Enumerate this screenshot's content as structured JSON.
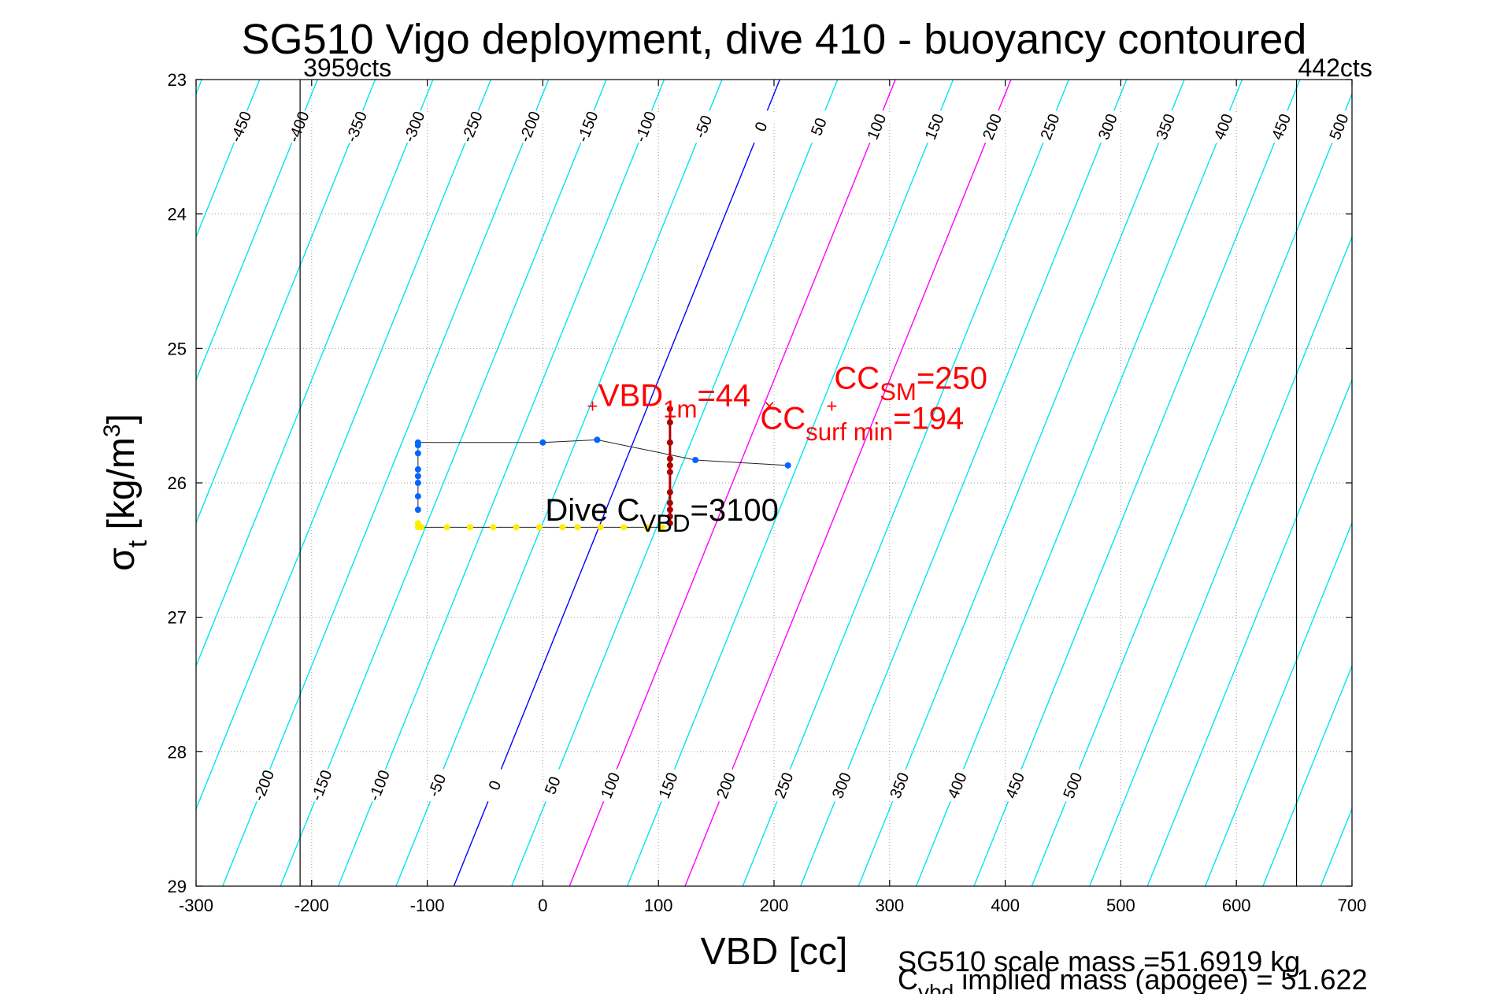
{
  "chart_data": {
    "type": "line",
    "title": "SG510 Vigo deployment, dive 410 - buoyancy contoured",
    "xlabel": "VBD [cc]",
    "ylabel": {
      "sym": "σ",
      "sub": "t",
      "unit": " [kg/m",
      "sup": "3",
      "close": "]"
    },
    "xlim": [
      -300,
      700
    ],
    "ylim": [
      23,
      29
    ],
    "y_reversed": true,
    "grid": true,
    "x_ticks": [
      -300,
      -200,
      -100,
      0,
      100,
      200,
      300,
      400,
      500,
      600,
      700
    ],
    "y_ticks": [
      23,
      24,
      25,
      26,
      27,
      28,
      29
    ],
    "vbd_limits": [
      {
        "x": -210,
        "label": "3959cts"
      },
      {
        "x": 652,
        "label": "442cts"
      }
    ],
    "buoyancy_contours": {
      "top_sigma": 23,
      "top_anchor_x": 205,
      "bottom_sigma": 29,
      "bottom_anchor_x": -77,
      "step": 50,
      "min": -700,
      "max": 800,
      "top_labels": [
        -450,
        -400,
        -350,
        -300,
        -250,
        -200,
        -150,
        -100,
        -50,
        0,
        50,
        100,
        150,
        200,
        250,
        300,
        350,
        400,
        450,
        500
      ],
      "bottom_labels": [
        -200,
        -150,
        -100,
        -50,
        0,
        50,
        100,
        150,
        200,
        250,
        300,
        350,
        400,
        450,
        500
      ],
      "highlight": [
        {
          "value": 0,
          "color": "#0000ff"
        },
        {
          "value": 100,
          "color": "#ff00ff"
        },
        {
          "value": 200,
          "color": "#ff00ff"
        }
      ],
      "color": "#00e5ee"
    },
    "series": [
      {
        "id": "dive-upper-track",
        "color": "#0066ff",
        "x": [
          -108,
          -108,
          -108,
          -108,
          -108,
          -108,
          -108,
          -108,
          0,
          47,
          132,
          212
        ],
        "y": [
          25.72,
          25.78,
          25.9,
          25.95,
          26.0,
          26.1,
          26.2,
          25.7,
          25.7,
          25.68,
          25.83,
          25.87
        ]
      },
      {
        "id": "dive-lower-track",
        "color": "#ffee00",
        "x": [
          -108,
          -108,
          -105,
          -83,
          -63,
          -43,
          -23,
          -3,
          17,
          30,
          50,
          70,
          90,
          103
        ],
        "y": [
          26.33,
          26.3,
          26.33,
          26.33,
          26.33,
          26.33,
          26.33,
          26.33,
          26.33,
          26.33,
          26.33,
          26.33,
          26.33,
          26.33
        ]
      },
      {
        "id": "climb-column",
        "color": "#b00000",
        "x": [
          110,
          110,
          110,
          110,
          110,
          110,
          110,
          110,
          110,
          110,
          110
        ],
        "y": [
          25.45,
          25.55,
          25.7,
          25.82,
          25.87,
          25.92,
          26.07,
          26.15,
          26.2,
          26.25,
          26.3
        ]
      }
    ],
    "markers": [
      {
        "x": 43,
        "y": 25.43,
        "symbol": "+",
        "color": "#ff0000"
      },
      {
        "x": 196,
        "y": 25.43,
        "symbol": "×",
        "color": "#ff0000"
      },
      {
        "x": 250,
        "y": 25.43,
        "symbol": "+",
        "color": "#ff0000"
      }
    ],
    "annotations": [
      {
        "x": 48,
        "y": 25.43,
        "main": "VBD",
        "sub": "1m",
        "tail": "=44",
        "color": "#ff0000"
      },
      {
        "x": 188,
        "y": 25.6,
        "main": "CC",
        "sub": "surf min",
        "tail": "=194",
        "color": "#ff0000"
      },
      {
        "x": 252,
        "y": 25.3,
        "main": "CC",
        "sub": "SM",
        "tail": "=250",
        "color": "#ff0000"
      },
      {
        "x": 2,
        "y": 26.28,
        "main": "Dive C",
        "sub": "VBD",
        "tail": "=3100",
        "color": "#000000"
      }
    ],
    "footer": [
      "SG510 scale mass =51.6919 kg",
      {
        "main": "C",
        "sub": "vbd",
        "tail": " implied mass (apogee) = 51.622"
      }
    ]
  }
}
